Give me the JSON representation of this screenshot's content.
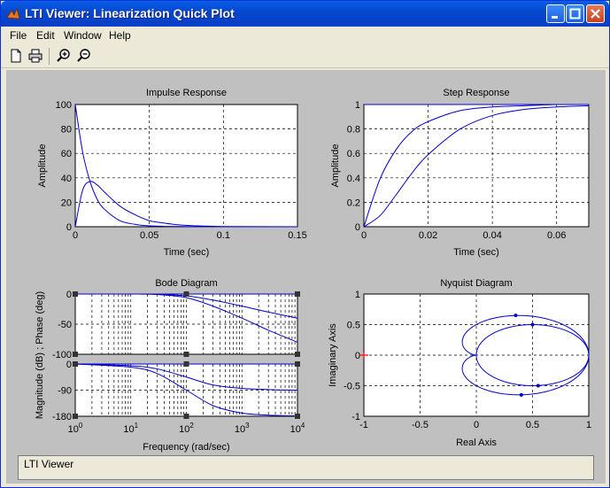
{
  "window": {
    "title": "LTI Viewer: Linearization Quick Plot"
  },
  "menu": [
    "File",
    "Edit",
    "Window",
    "Help"
  ],
  "toolbar": {
    "icons": [
      "new-icon",
      "print-icon",
      "zoom-in-icon",
      "zoom-out-icon"
    ]
  },
  "status": {
    "text": "LTI Viewer"
  },
  "colors": {
    "line": "#0000cc",
    "grid": "#000000",
    "background": "#c0c0c0",
    "axes_bg": "#ffffff",
    "marker": "#ff0000"
  },
  "chart_data": [
    {
      "type": "line",
      "title": "Impulse Response",
      "xlabel": "Time (sec)",
      "ylabel": "Amplitude",
      "xlim": [
        0,
        0.15
      ],
      "ylim": [
        0,
        100
      ],
      "xticks": [
        "0",
        "0.05",
        "0.1",
        "0.15"
      ],
      "yticks": [
        "0",
        "20",
        "40",
        "60",
        "80",
        "100"
      ],
      "grid": true,
      "series": [
        {
          "x": [
            0,
            0.005,
            0.01,
            0.015,
            0.02,
            0.03,
            0.04,
            0.05,
            0.06,
            0.08,
            0.1,
            0.15
          ],
          "y": [
            100,
            61,
            37,
            22,
            14,
            5,
            2,
            0.7,
            0.3,
            0.1,
            0,
            0
          ]
        },
        {
          "x": [
            0,
            0.005,
            0.01,
            0.015,
            0.02,
            0.03,
            0.04,
            0.05,
            0.06,
            0.07,
            0.08,
            0.1,
            0.15
          ],
          "y": [
            0,
            30,
            37,
            34,
            28,
            17,
            10,
            5,
            3,
            1.5,
            0.8,
            0.2,
            0
          ]
        }
      ]
    },
    {
      "type": "line",
      "title": "Step Response",
      "xlabel": "Time (sec)",
      "ylabel": "Amplitude",
      "xlim": [
        0,
        0.07
      ],
      "ylim": [
        0,
        1
      ],
      "xticks": [
        "0",
        "0.02",
        "0.04",
        "0.06"
      ],
      "yticks": [
        "0",
        "0.2",
        "0.4",
        "0.6",
        "0.8",
        "1"
      ],
      "grid": true,
      "series": [
        {
          "x": [
            0,
            0.005,
            0.01,
            0.015,
            0.02,
            0.03,
            0.04,
            0.05,
            0.06,
            0.07
          ],
          "y": [
            0,
            0.39,
            0.63,
            0.78,
            0.86,
            0.95,
            0.98,
            0.99,
            1,
            1
          ]
        },
        {
          "x": [
            0,
            0.005,
            0.01,
            0.015,
            0.02,
            0.03,
            0.04,
            0.05,
            0.06,
            0.07
          ],
          "y": [
            0,
            0.09,
            0.26,
            0.44,
            0.59,
            0.8,
            0.91,
            0.96,
            0.98,
            0.99
          ]
        },
        {
          "x": [
            0,
            0.07
          ],
          "y": [
            1,
            1
          ]
        }
      ]
    },
    {
      "type": "line",
      "title": "Bode Diagram",
      "xlabel": "Frequency  (rad/sec)",
      "ylabel": "Magnitude (dB) ; Phase (deg)",
      "xscale": "log",
      "xlim": [
        1,
        10000
      ],
      "xticks": [
        "10^0",
        "10^1",
        "10^2",
        "10^3",
        "10^4"
      ],
      "magnitude": {
        "ylim": [
          -100,
          0
        ],
        "yticks": [
          "0",
          "-50",
          "-100"
        ],
        "series": [
          {
            "x": [
              1,
              10,
              30,
              100,
              300,
              1000,
              3000,
              10000
            ],
            "y": [
              0,
              0,
              -0.4,
              -3,
              -10,
              -20,
              -30,
              -40
            ]
          },
          {
            "x": [
              1,
              10,
              30,
              100,
              300,
              1000,
              3000,
              10000
            ],
            "y": [
              0,
              0,
              -0.8,
              -6,
              -20,
              -40,
              -60,
              -80
            ]
          },
          {
            "x": [
              1,
              10000
            ],
            "y": [
              0,
              0
            ]
          }
        ]
      },
      "phase": {
        "ylim": [
          -180,
          0
        ],
        "yticks": [
          "0",
          "-90",
          "-180"
        ],
        "series": [
          {
            "x": [
              1,
              10,
              30,
              100,
              300,
              1000,
              3000,
              10000
            ],
            "y": [
              0,
              -6,
              -17,
              -45,
              -72,
              -84,
              -88,
              -90
            ]
          },
          {
            "x": [
              1,
              10,
              30,
              100,
              300,
              1000,
              3000,
              10000
            ],
            "y": [
              0,
              -11,
              -33,
              -90,
              -143,
              -169,
              -176,
              -179
            ]
          },
          {
            "x": [
              1,
              10000
            ],
            "y": [
              0,
              0
            ]
          }
        ]
      },
      "grid": true
    },
    {
      "type": "line",
      "title": "Nyquist Diagram",
      "xlabel": "Real Axis",
      "ylabel": "Imaginary Axis",
      "xlim": [
        -1,
        1
      ],
      "ylim": [
        -1,
        1
      ],
      "xticks": [
        "-1",
        "-0.5",
        "0",
        "0.5",
        "1"
      ],
      "yticks": [
        "-1",
        "-0.5",
        "0",
        "0.5",
        "1"
      ],
      "grid": true,
      "critical_point": [
        -1,
        0
      ]
    }
  ]
}
